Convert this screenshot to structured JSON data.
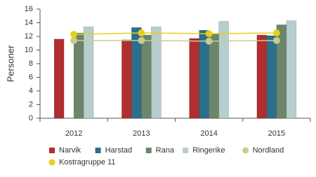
{
  "chart_data": {
    "type": "bar",
    "y_label": "Personer",
    "categories": [
      "2012",
      "2013",
      "2014",
      "2015"
    ],
    "ylim": [
      0,
      16
    ],
    "yticks": [
      0,
      2,
      4,
      6,
      8,
      10,
      12,
      14,
      16
    ],
    "grid": false,
    "series": [
      {
        "name": "Narvik",
        "color": "#b02e2e",
        "values": [
          11.6,
          11.5,
          11.7,
          12.2
        ]
      },
      {
        "name": "Harstad",
        "color": "#2b6f8c",
        "values": [
          null,
          13.3,
          12.9,
          12.1
        ]
      },
      {
        "name": "Rana",
        "color": "#6b866b",
        "values": [
          12.5,
          12.2,
          12.4,
          13.7
        ]
      },
      {
        "name": "Ringerike",
        "color": "#b7cdcd",
        "values": [
          13.4,
          13.4,
          14.2,
          14.3
        ]
      },
      {
        "name": "Nordland",
        "type": "line",
        "color": "#c9cc8c",
        "values": [
          11.4,
          11.4,
          11.3,
          11.4
        ]
      },
      {
        "name": "Kostragruppe 11",
        "type": "line",
        "color": "#e8cf1c",
        "values": [
          12.3,
          12.5,
          12.4,
          12.5
        ]
      }
    ]
  }
}
